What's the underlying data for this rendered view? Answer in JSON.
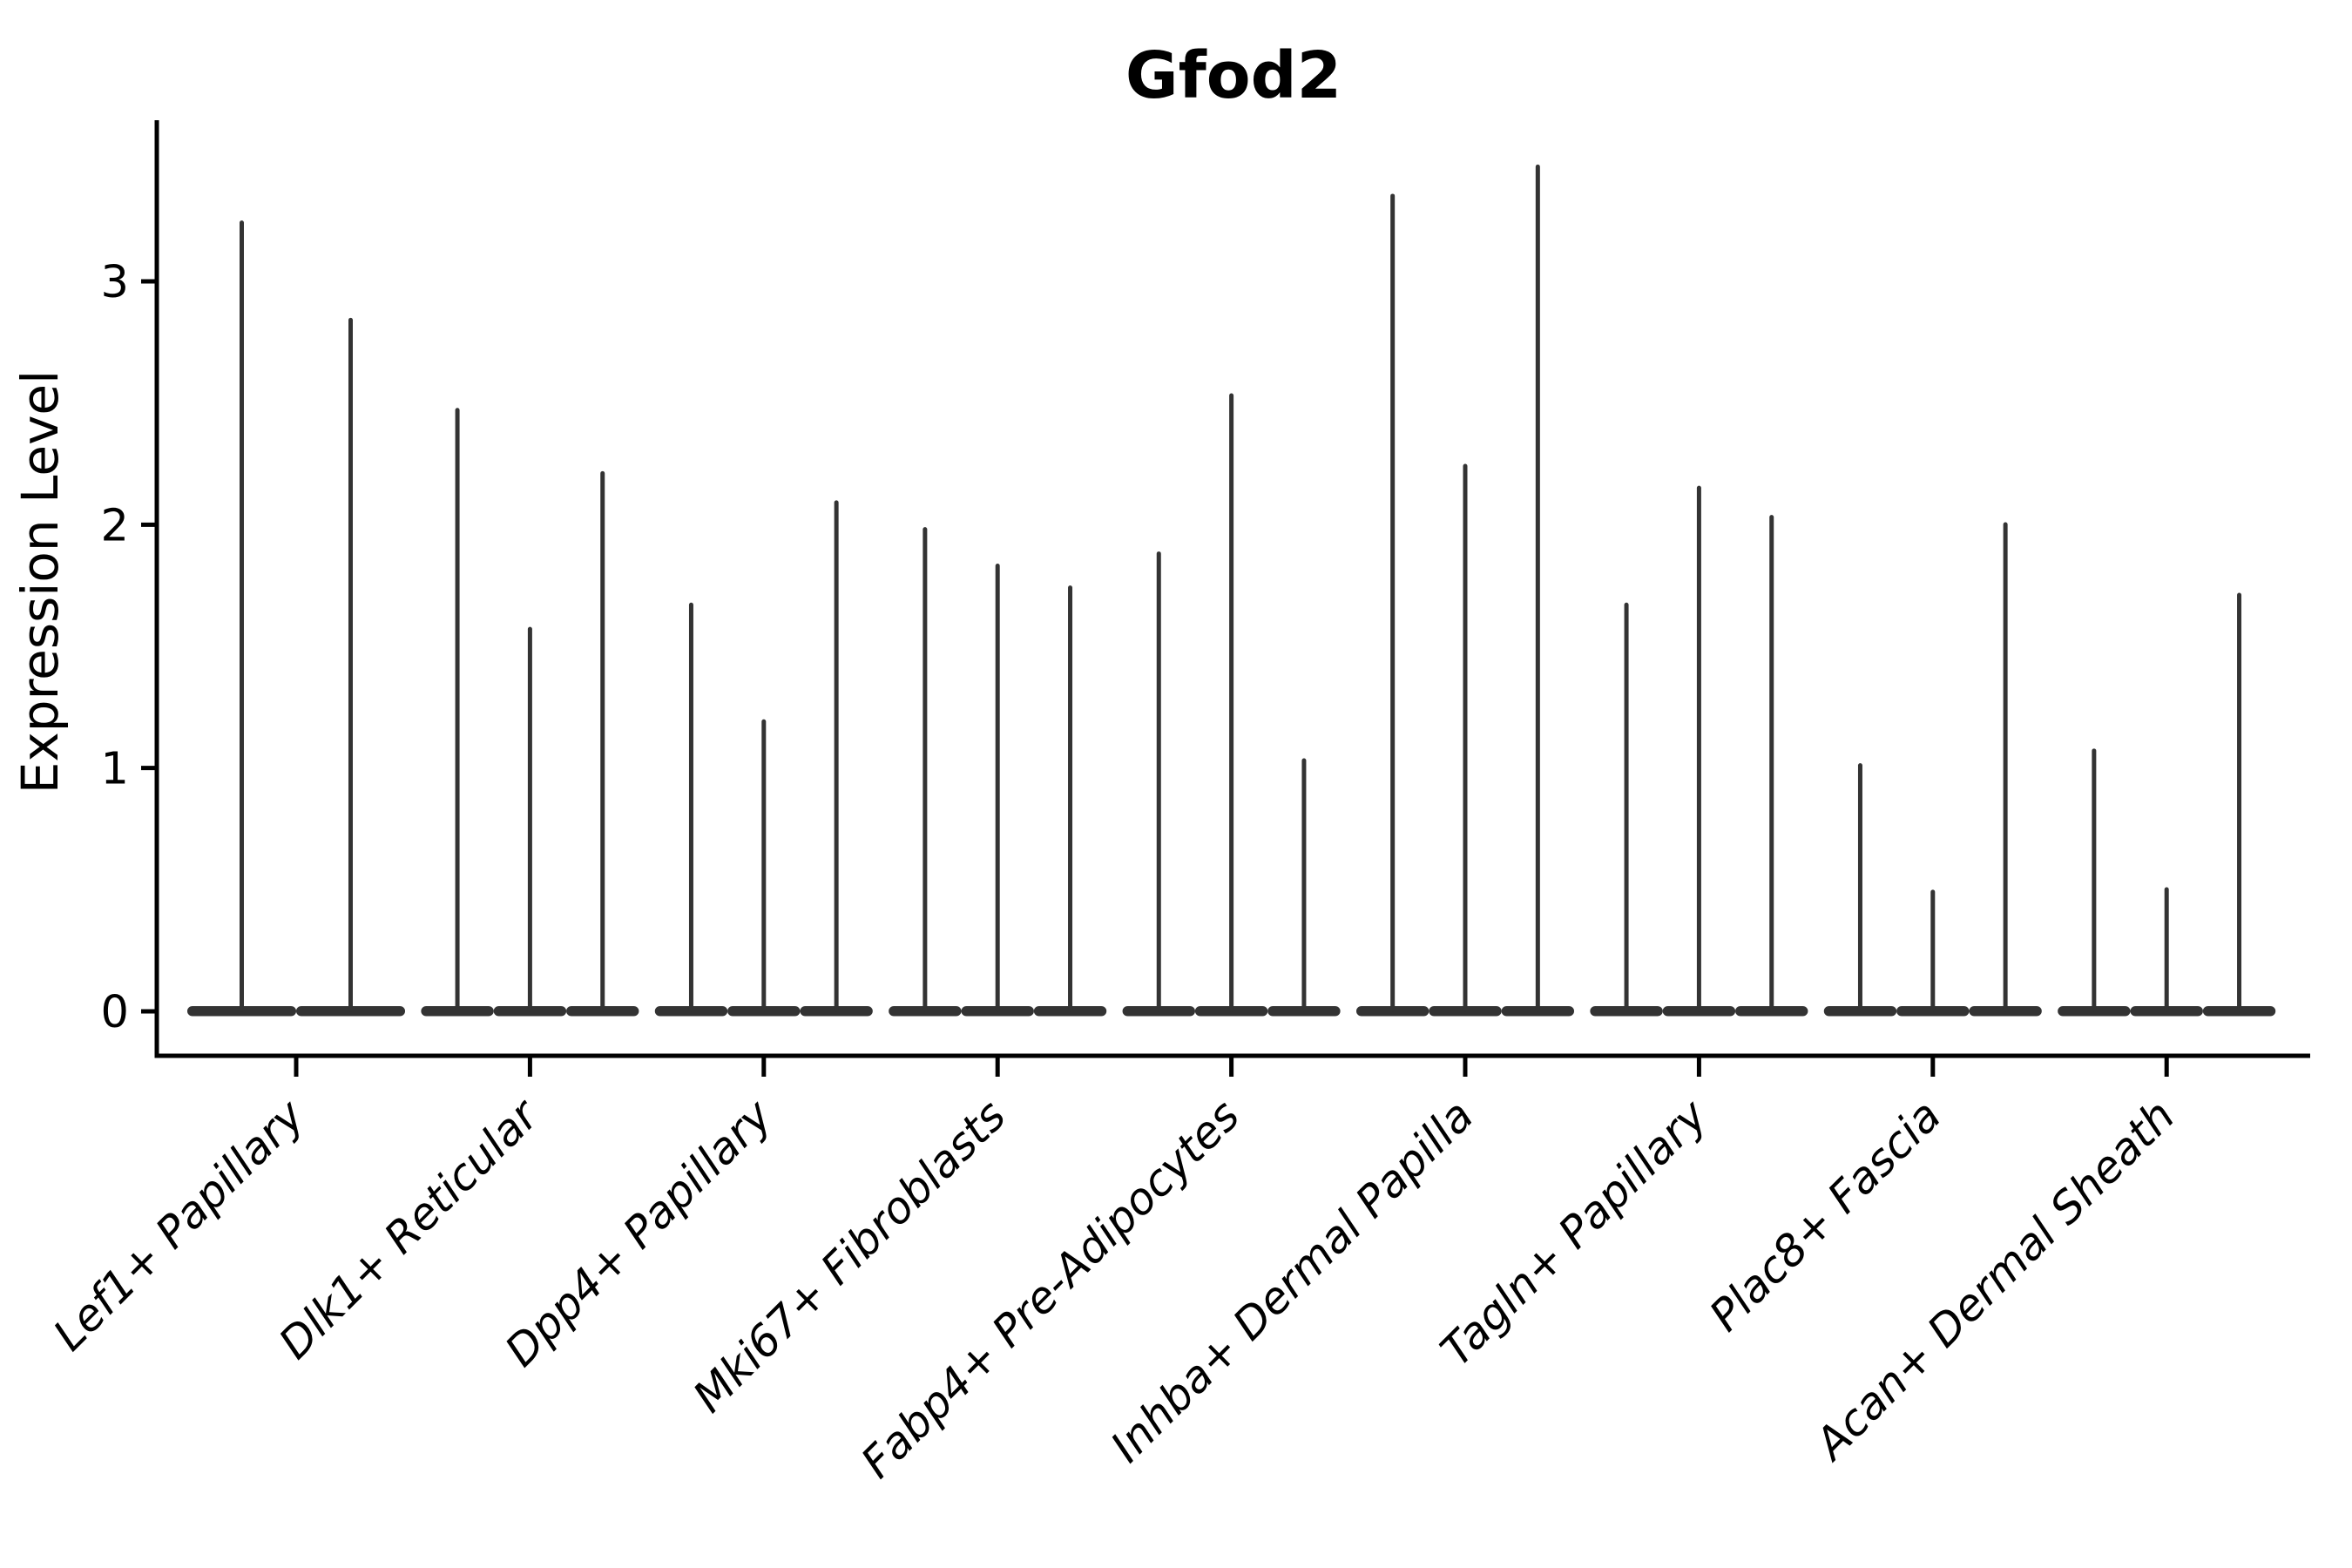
{
  "title": "Gfod2",
  "axes": {
    "y_label": "Expression Level",
    "y_tick_labels": [
      "0",
      "1",
      "2",
      "3"
    ]
  },
  "chart_data": {
    "type": "violin",
    "title": "Gfod2",
    "ylabel": "Expression Level",
    "xlabel": "",
    "ylim": [
      0,
      3.65
    ],
    "yticks": [
      0,
      1,
      2,
      3
    ],
    "grid": false,
    "legend": "none",
    "violin_style": "thin spike violins: bulk of density flat at 0, narrow spike rising to max value",
    "violin_color": "#333333",
    "axis_color": "#000000",
    "categories": [
      "Lef1+ Papillary",
      "Dlk1+ Reticular",
      "Dpp4+ Papillary",
      "Mki67+ Fibroblasts",
      "Fabp4+ Pre-Adipocytes",
      "Inhba+ Dermal Papilla",
      "Tagln+ Papillary",
      "Plac8+ Fascia",
      "Acan+ Dermal Sheath"
    ],
    "groups": [
      {
        "label": "Lef1+ Papillary",
        "violin_maxima": [
          3.25,
          2.85
        ]
      },
      {
        "label": "Dlk1+ Reticular",
        "violin_maxima": [
          2.48,
          1.58,
          2.22
        ]
      },
      {
        "label": "Dpp4+ Papillary",
        "violin_maxima": [
          1.68,
          1.2,
          2.1
        ]
      },
      {
        "label": "Mki67+ Fibroblasts",
        "violin_maxima": [
          1.99,
          1.84,
          1.75
        ]
      },
      {
        "label": "Fabp4+ Pre-Adipocytes",
        "violin_maxima": [
          1.89,
          2.54,
          1.04
        ]
      },
      {
        "label": "Inhba+ Dermal Papilla",
        "violin_maxima": [
          3.36,
          2.25,
          3.48
        ]
      },
      {
        "label": "Tagln+ Papillary",
        "violin_maxima": [
          1.68,
          2.16,
          2.04
        ]
      },
      {
        "label": "Plac8+ Fascia",
        "violin_maxima": [
          1.02,
          0.5,
          2.01
        ]
      },
      {
        "label": "Acan+ Dermal Sheath",
        "violin_maxima": [
          1.08,
          0.51,
          1.72
        ]
      }
    ]
  }
}
